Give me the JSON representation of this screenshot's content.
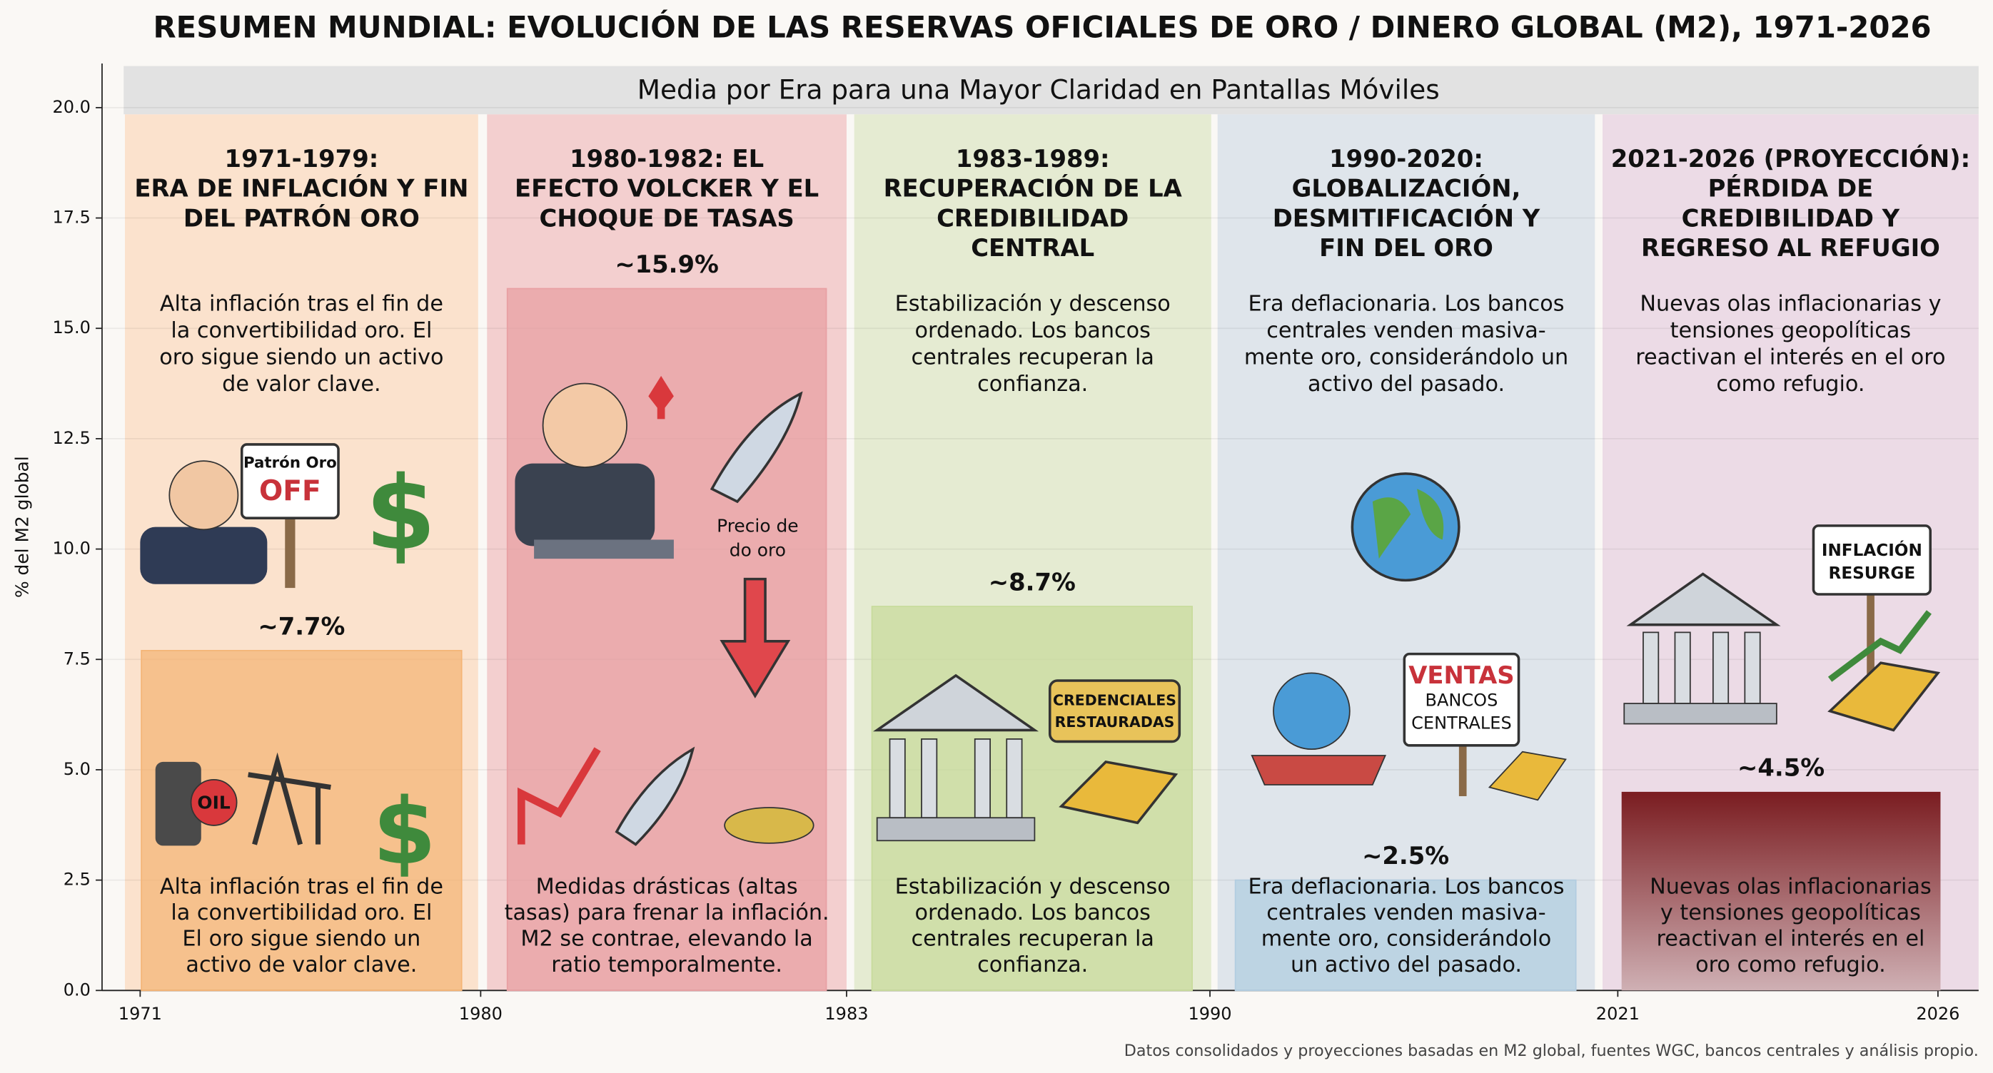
{
  "chart_data": {
    "type": "bar",
    "title": "RESUMEN MUNDIAL: EVOLUCIÓN DE LAS RESERVAS OFICIALES DE ORO / DINERO GLOBAL (M2), 1971-2026",
    "subtitle": "Media por Era para una Mayor Claridad en Pantallas Móviles",
    "ylabel": "% del M2 global",
    "footnote": "Datos consolidados y proyecciones basadas en M2 global, fuentes WGC, bancos centrales y análisis propio.",
    "era_bounds": [
      "1971",
      "1980",
      "1983",
      "1990",
      "2021",
      "2026"
    ],
    "ylim": [
      0,
      21
    ],
    "yticks": [
      {
        "value": 0,
        "label": "0.0"
      },
      {
        "value": 2.5,
        "label": "2.5"
      },
      {
        "value": 5,
        "label": "5.0"
      },
      {
        "value": 7.5,
        "label": "7.5"
      },
      {
        "value": 10,
        "label": "10.0"
      },
      {
        "value": 12.5,
        "label": "12.5"
      },
      {
        "value": 15,
        "label": "15.0"
      },
      {
        "value": 17.5,
        "label": "17.5"
      },
      {
        "value": 20,
        "label": "20.0"
      }
    ],
    "grid": true,
    "values": [
      7.7,
      15.9,
      8.7,
      2.5,
      4.5
    ],
    "value_labels": [
      "~7.7%",
      "~15.9%",
      "~8.7%",
      "~2.5%",
      "~4.5%"
    ],
    "eras": [
      {
        "title": [
          "1971-1979:",
          "ERA DE INFLACIÓN Y FIN",
          "DEL PATRÓN ORO"
        ],
        "description": [
          "Alta inflación tras el fin de",
          "la convertibilidad oro. El",
          "oro sigue siendo un activo",
          "de valor clave."
        ],
        "bar_text": [
          "Alta inflación tras el fin de",
          "la convertibilidad oro. El",
          "El oro sigue siendo un",
          "activo de valor clave."
        ],
        "icon_texts": [
          "Patrón Oro",
          "OFF",
          "OIL"
        ],
        "background": "#fbe2cd",
        "color": "#f4b577"
      },
      {
        "title": [
          "1980-1982: EL",
          "EFECTO VOLCKER Y EL",
          "CHOQUE DE TASAS"
        ],
        "bar_text": [
          "Medidas drásticas (altas",
          "tasas) para frenar la inflación.",
          "M2 se contrae, elevando la",
          "ratio temporalmente."
        ],
        "icon_texts": [
          "Precio de",
          "do oro"
        ],
        "background": "#f3cfcf",
        "color": "#e8a0a3"
      },
      {
        "title": [
          "1983-1989:",
          "RECUPERACIÓN DE LA",
          "CREDIBILIDAD",
          "CENTRAL"
        ],
        "description": [
          "Estabilización y descenso",
          "ordenado. Los bancos",
          "centrales recuperan la",
          "confianza."
        ],
        "bar_text": [
          "Estabilización y descenso",
          "ordenado. Los bancos",
          "centrales recuperan la",
          "confianza."
        ],
        "icon_texts": [
          "CREDENCIALES",
          "RESTAURADAS"
        ],
        "background": "#e5ebd2",
        "color": "#c8db9c"
      },
      {
        "title": [
          "1990-2020:",
          "GLOBALIZACIÓN,",
          "DESMITIFICACIÓN Y",
          "FIN DEL ORO"
        ],
        "description": [
          "Era deflacionaria. Los bancos",
          "centrales venden masiva-",
          "mente oro, considerándolo un",
          "activo del pasado."
        ],
        "bar_text": [
          "Era deflacionaria. Los bancos",
          "centrales venden masiva-",
          "mente oro, considerándolo",
          "un activo del pasado."
        ],
        "icon_texts": [
          "VENTAS",
          "BANCOS",
          "CENTRALES"
        ],
        "background": "#dfe5eb",
        "color": "#b2cde0"
      },
      {
        "title": [
          "2021-2026 (PROYECCIÓN):",
          "PÉRDIDA DE",
          "CREDIBILIDAD Y",
          "REGRESO AL REFUGIO"
        ],
        "description": [
          "Nuevas olas inflacionarias y",
          "tensiones geopolíticas",
          "reactivan el interés en el oro",
          "como refugio."
        ],
        "bar_text": [
          "Nuevas olas inflacionarias",
          "y tensiones geopolíticas",
          "reactivan el interés en el",
          "oro como refugio."
        ],
        "icon_texts": [
          "INFLACIÓN",
          "RESURGE"
        ],
        "background": "#ecdbe6",
        "color": "#7a1c20"
      }
    ]
  }
}
